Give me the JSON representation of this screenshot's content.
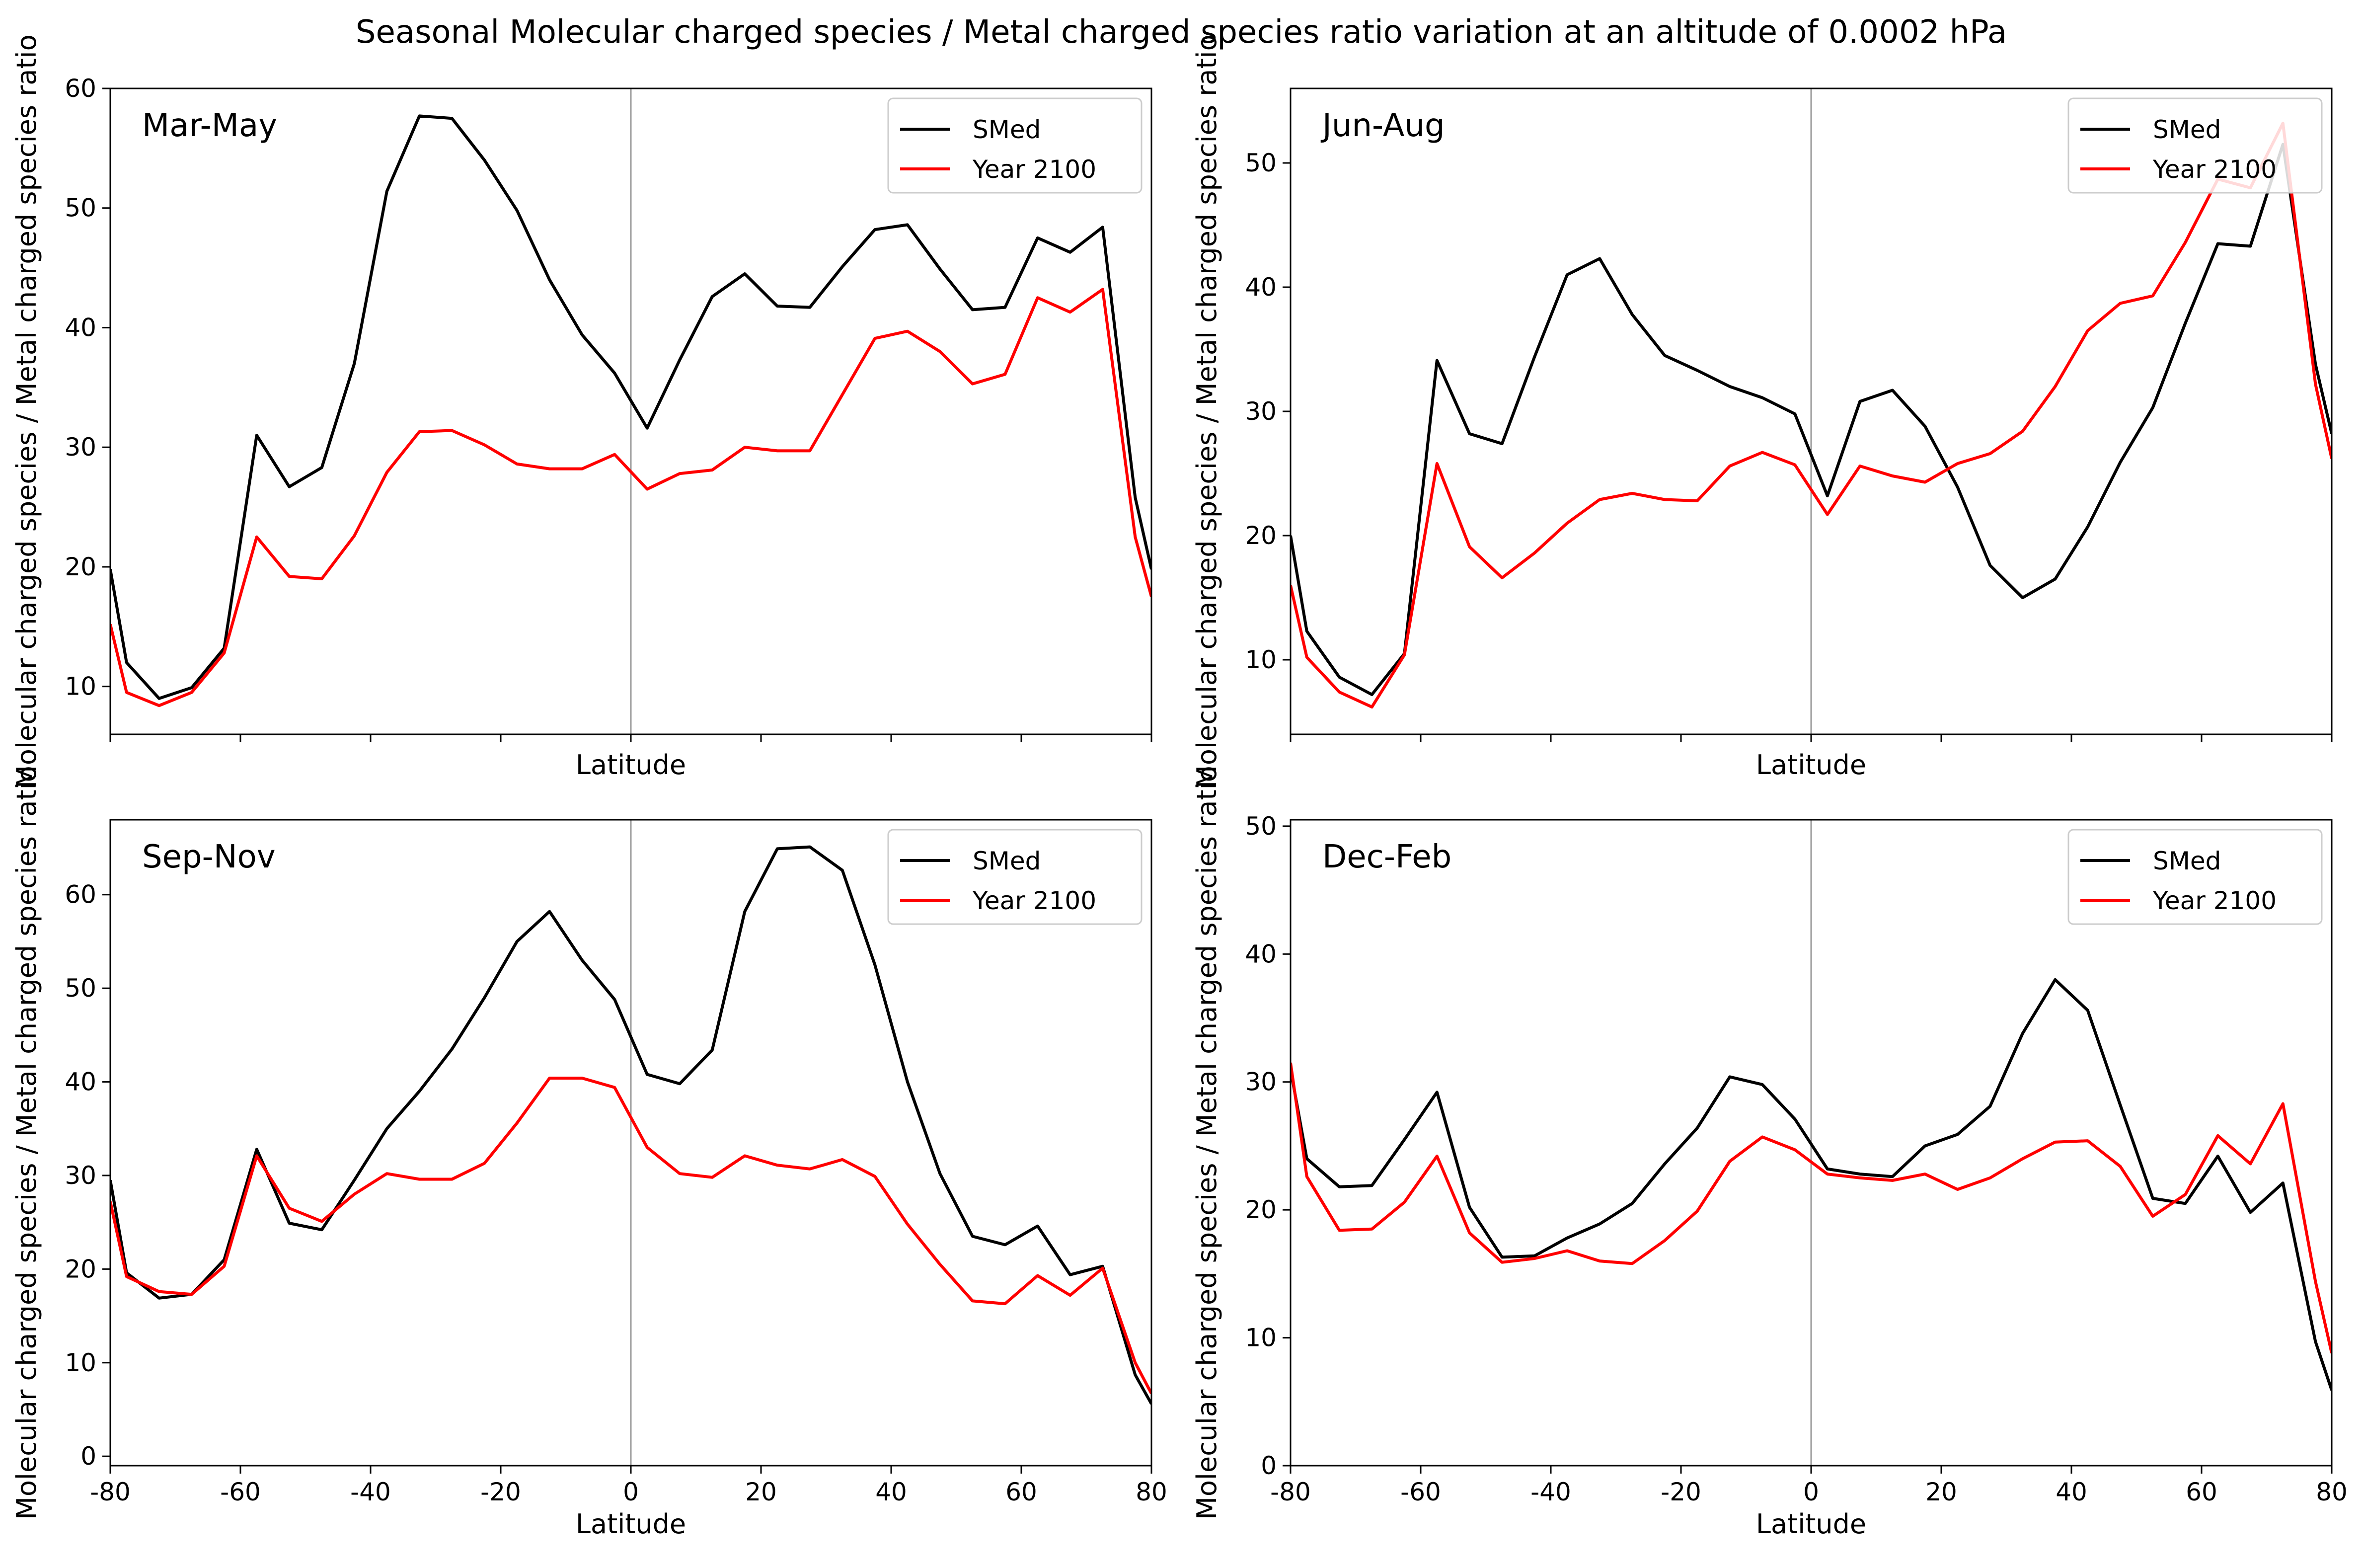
{
  "figure": {
    "suptitle": "Seasonal Molecular charged species / Metal charged species ratio variation at an altitude of 0.0002 hPa",
    "line_colors": {
      "SMed": "#000000",
      "Year 2100": "#ff0000"
    },
    "zero_line_color": "#999999"
  },
  "chart_data": [
    {
      "type": "line",
      "panel_label": "Mar-May",
      "xlabel": "Latitude",
      "ylabel": "Molecular charged species / Metal charged species ratio",
      "xlim": [
        -80,
        80
      ],
      "ylim": [
        6,
        60
      ],
      "xticks": [
        -80,
        -60,
        -40,
        -20,
        0,
        20,
        40,
        60,
        80
      ],
      "show_xtick_labels": false,
      "yticks": [
        10,
        20,
        30,
        40,
        50,
        60
      ],
      "legend_position": "top-right",
      "x": [
        -80,
        -77.5,
        -72.5,
        -67.5,
        -62.5,
        -57.5,
        -52.5,
        -47.5,
        -42.5,
        -37.5,
        -32.5,
        -27.5,
        -22.5,
        -17.5,
        -12.5,
        -7.5,
        -2.5,
        2.5,
        7.5,
        12.5,
        17.5,
        22.5,
        27.5,
        32.5,
        37.5,
        42.5,
        47.5,
        52.5,
        57.5,
        62.5,
        67.5,
        72.5,
        77.5,
        80
      ],
      "series": [
        {
          "name": "SMed",
          "color": "#000000",
          "values": [
            19.8,
            12,
            9,
            9.9,
            13.2,
            31,
            26.7,
            28.3,
            37,
            51.4,
            57.7,
            57.5,
            54,
            49.8,
            44,
            39.4,
            36.2,
            31.6,
            37.3,
            42.6,
            44.5,
            41.8,
            41.7,
            45.1,
            48.2,
            48.6,
            44.9,
            41.5,
            41.7,
            47.5,
            46.3,
            48.4,
            25.8,
            19.8
          ]
        },
        {
          "name": "Year 2100",
          "color": "#ff0000",
          "values": [
            15.2,
            9.5,
            8.4,
            9.5,
            12.8,
            22.5,
            19.2,
            19,
            22.6,
            27.9,
            31.3,
            31.4,
            30.2,
            28.6,
            28.2,
            28.2,
            29.4,
            26.5,
            27.8,
            28.1,
            30,
            29.7,
            29.7,
            34.4,
            39.1,
            39.7,
            38,
            35.3,
            36.1,
            42.5,
            41.3,
            43.2,
            22.5,
            17.5
          ]
        }
      ]
    },
    {
      "type": "line",
      "panel_label": "Jun-Aug",
      "xlabel": "Latitude",
      "ylabel": "Molecular charged species / Metal charged species ratio",
      "xlim": [
        -80,
        80
      ],
      "ylim": [
        4,
        56
      ],
      "xticks": [
        -80,
        -60,
        -40,
        -20,
        0,
        20,
        40,
        60,
        80
      ],
      "show_xtick_labels": false,
      "yticks": [
        10,
        20,
        30,
        40,
        50
      ],
      "legend_position": "top-right",
      "x": [
        -80,
        -77.5,
        -72.5,
        -67.5,
        -62.5,
        -57.5,
        -52.5,
        -47.5,
        -42.5,
        -37.5,
        -32.5,
        -27.5,
        -22.5,
        -17.5,
        -12.5,
        -7.5,
        -2.5,
        2.5,
        7.5,
        12.5,
        17.5,
        22.5,
        27.5,
        32.5,
        37.5,
        42.5,
        47.5,
        52.5,
        57.5,
        62.5,
        67.5,
        72.5,
        77.5,
        80
      ],
      "series": [
        {
          "name": "SMed",
          "color": "#000000",
          "values": [
            20,
            12.3,
            8.6,
            7.2,
            10.5,
            34.1,
            28.2,
            27.4,
            34.4,
            41,
            42.3,
            37.8,
            34.5,
            33.3,
            32,
            31.1,
            29.8,
            23.2,
            30.8,
            31.7,
            28.8,
            23.9,
            17.6,
            15,
            16.5,
            20.7,
            25.9,
            30.3,
            37.1,
            43.5,
            43.3,
            51.5,
            33.8,
            28.2
          ]
        },
        {
          "name": "Year 2100",
          "color": "#ff0000",
          "values": [
            16,
            10.2,
            7.4,
            6.2,
            10.4,
            25.8,
            19.1,
            16.6,
            18.6,
            21,
            22.9,
            23.4,
            22.9,
            22.8,
            25.6,
            26.7,
            25.7,
            21.7,
            25.6,
            24.8,
            24.3,
            25.8,
            26.6,
            28.4,
            32,
            36.5,
            38.7,
            39.3,
            43.6,
            48.7,
            48,
            53.2,
            32.2,
            26.2
          ]
        }
      ]
    },
    {
      "type": "line",
      "panel_label": "Sep-Nov",
      "xlabel": "Latitude",
      "ylabel": "Molecular charged species / Metal charged species ratio",
      "xlim": [
        -80,
        80
      ],
      "ylim": [
        -1,
        68
      ],
      "xticks": [
        -80,
        -60,
        -40,
        -20,
        0,
        20,
        40,
        60,
        80
      ],
      "show_xtick_labels": true,
      "yticks": [
        0,
        10,
        20,
        30,
        40,
        50,
        60
      ],
      "legend_position": "top-right",
      "x": [
        -80,
        -77.5,
        -72.5,
        -67.5,
        -62.5,
        -57.5,
        -52.5,
        -47.5,
        -42.5,
        -37.5,
        -32.5,
        -27.5,
        -22.5,
        -17.5,
        -12.5,
        -7.5,
        -2.5,
        2.5,
        7.5,
        12.5,
        17.5,
        22.5,
        27.5,
        32.5,
        37.5,
        42.5,
        47.5,
        52.5,
        57.5,
        62.5,
        67.5,
        72.5,
        77.5,
        80
      ],
      "series": [
        {
          "name": "SMed",
          "color": "#000000",
          "values": [
            29.5,
            19.6,
            16.9,
            17.3,
            21,
            32.8,
            24.9,
            24.2,
            29.5,
            35,
            39,
            43.5,
            49,
            55,
            58.2,
            53,
            48.8,
            40.8,
            39.8,
            43.4,
            58.2,
            64.9,
            65.1,
            62.6,
            52.5,
            40,
            30.2,
            23.5,
            22.6,
            24.6,
            19.4,
            20.3,
            8.7,
            5.6
          ]
        },
        {
          "name": "Year 2100",
          "color": "#ff0000",
          "values": [
            27.2,
            19.2,
            17.6,
            17.3,
            20.3,
            32.1,
            26.5,
            25.1,
            28,
            30.2,
            29.6,
            29.6,
            31.3,
            35.6,
            40.4,
            40.4,
            39.4,
            33,
            30.2,
            29.8,
            32.1,
            31.1,
            30.7,
            31.7,
            29.9,
            24.8,
            20.5,
            16.6,
            16.3,
            19.3,
            17.2,
            20.1,
            10,
            6.7
          ]
        }
      ]
    },
    {
      "type": "line",
      "panel_label": "Dec-Feb",
      "xlabel": "Latitude",
      "ylabel": "Molecular charged species / Metal charged species ratio",
      "xlim": [
        -80,
        80
      ],
      "ylim": [
        0,
        50.5
      ],
      "xticks": [
        -80,
        -60,
        -40,
        -20,
        0,
        20,
        40,
        60,
        80
      ],
      "show_xtick_labels": true,
      "yticks": [
        0,
        10,
        20,
        30,
        40,
        50
      ],
      "legend_position": "top-right",
      "x": [
        -80,
        -77.5,
        -72.5,
        -67.5,
        -62.5,
        -57.5,
        -52.5,
        -47.5,
        -42.5,
        -37.5,
        -32.5,
        -27.5,
        -22.5,
        -17.5,
        -12.5,
        -7.5,
        -2.5,
        2.5,
        7.5,
        12.5,
        17.5,
        22.5,
        27.5,
        32.5,
        37.5,
        42.5,
        47.5,
        52.5,
        57.5,
        62.5,
        67.5,
        72.5,
        77.5,
        80
      ],
      "series": [
        {
          "name": "SMed",
          "color": "#000000",
          "values": [
            31,
            24,
            21.8,
            21.9,
            25.5,
            29.2,
            20.2,
            16.3,
            16.4,
            17.8,
            18.9,
            20.5,
            23.6,
            26.4,
            30.4,
            29.8,
            27.1,
            23.2,
            22.8,
            22.6,
            25,
            25.9,
            28.1,
            33.8,
            38,
            35.6,
            28.2,
            20.9,
            20.5,
            24.2,
            19.8,
            22.1,
            9.7,
            5.9
          ]
        },
        {
          "name": "Year 2100",
          "color": "#ff0000",
          "values": [
            31.5,
            22.6,
            18.4,
            18.5,
            20.6,
            24.2,
            18.2,
            15.9,
            16.2,
            16.8,
            16,
            15.8,
            17.6,
            19.9,
            23.8,
            25.7,
            24.7,
            22.8,
            22.5,
            22.3,
            22.8,
            21.6,
            22.5,
            24,
            25.3,
            25.4,
            23.4,
            19.5,
            21.2,
            25.8,
            23.6,
            28.3,
            14.4,
            8.8
          ]
        }
      ]
    }
  ]
}
